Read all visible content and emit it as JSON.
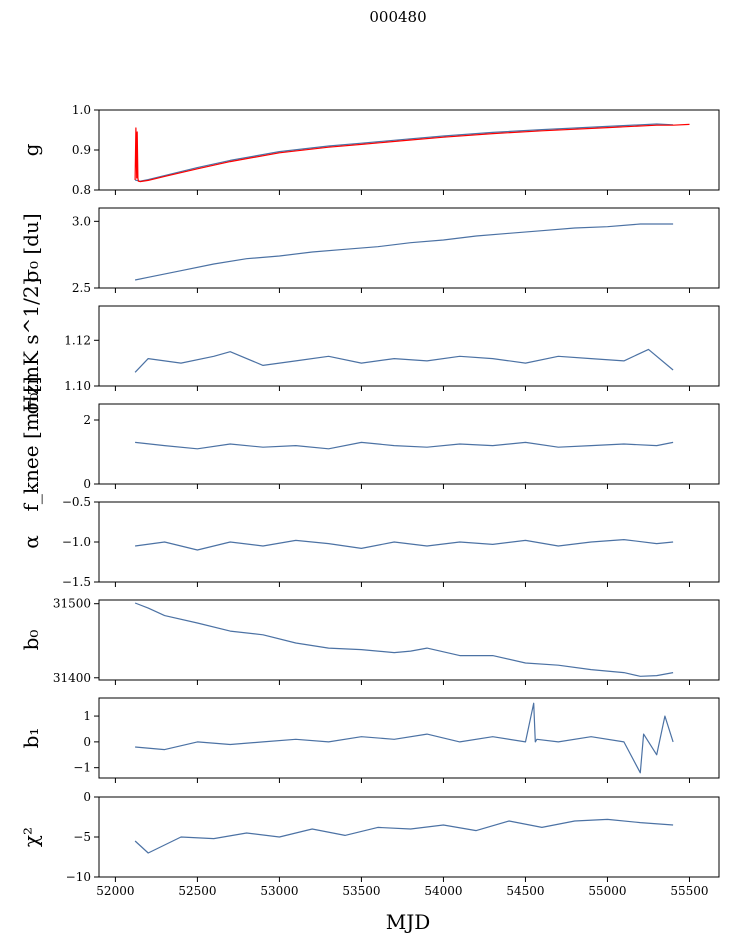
{
  "chart_data": {
    "title": "000480",
    "xlabel": "MJD",
    "xlim": [
      51900,
      55680
    ],
    "xticks": [
      52000,
      52500,
      53000,
      53500,
      54000,
      54500,
      55000,
      55500
    ],
    "xtick_labels": [
      "52000",
      "52500",
      "53000",
      "53500",
      "54000",
      "54500",
      "55000",
      "55500"
    ],
    "colors": {
      "data": "#4c72a4",
      "model": "#ff0000"
    },
    "panels": [
      {
        "key": "g",
        "type": "line",
        "ylabel": "g",
        "ylim": [
          0.8,
          1.0
        ],
        "yticks": [
          0.8,
          0.9,
          1.0
        ],
        "ytick_labels": [
          "0.8",
          "0.9",
          "1.0"
        ],
        "series": [
          {
            "name": "data",
            "color": "#4c72a4",
            "x": [
              52120,
              52150,
              52200,
              52300,
              52500,
              52700,
              53000,
              53300,
              53500,
              53800,
              54000,
              54300,
              54600,
              55000,
              55300,
              55400
            ],
            "y": [
              0.825,
              0.822,
              0.826,
              0.836,
              0.856,
              0.874,
              0.896,
              0.91,
              0.917,
              0.928,
              0.935,
              0.944,
              0.951,
              0.959,
              0.965,
              0.963
            ]
          },
          {
            "name": "model",
            "color": "#ff0000",
            "x": [
              52120,
              52125,
              52130,
              52133,
              52137,
              52140,
              52150,
              52200,
              52300,
              52500,
              52700,
              53000,
              53300,
              53500,
              53800,
              54000,
              54300,
              54600,
              55000,
              55300,
              55400,
              55500
            ],
            "y": [
              0.825,
              0.955,
              0.83,
              0.945,
              0.83,
              0.822,
              0.821,
              0.824,
              0.834,
              0.853,
              0.871,
              0.893,
              0.907,
              0.914,
              0.925,
              0.932,
              0.941,
              0.948,
              0.956,
              0.962,
              0.962,
              0.964
            ]
          }
        ]
      },
      {
        "key": "sigma0_du",
        "type": "line",
        "ylabel": "σ₀ [du]",
        "ylim": [
          2.5,
          3.1
        ],
        "yticks": [
          2.5,
          3.0
        ],
        "ytick_labels": [
          "2.5",
          "3.0"
        ],
        "series": [
          {
            "name": "data",
            "color": "#4c72a4",
            "x": [
              52120,
              52200,
              52400,
              52600,
              52800,
              53000,
              53200,
              53400,
              53600,
              53800,
              54000,
              54200,
              54400,
              54600,
              54800,
              55000,
              55200,
              55400
            ],
            "y": [
              2.56,
              2.58,
              2.63,
              2.68,
              2.72,
              2.74,
              2.77,
              2.79,
              2.81,
              2.84,
              2.86,
              2.89,
              2.91,
              2.93,
              2.95,
              2.96,
              2.98,
              2.98
            ]
          }
        ]
      },
      {
        "key": "sigma0_mK",
        "type": "line",
        "ylabel": "σ₀[mK s^1/2]",
        "ylim": [
          1.1,
          1.135
        ],
        "yticks": [
          1.1,
          1.12
        ],
        "ytick_labels": [
          "1.10",
          "1.12"
        ],
        "series": [
          {
            "name": "data",
            "color": "#4c72a4",
            "x": [
              52120,
              52200,
              52400,
              52600,
              52700,
              52900,
              53100,
              53300,
              53500,
              53700,
              53900,
              54100,
              54300,
              54500,
              54700,
              54900,
              55100,
              55250,
              55400
            ],
            "y": [
              1.106,
              1.112,
              1.11,
              1.113,
              1.115,
              1.109,
              1.111,
              1.113,
              1.11,
              1.112,
              1.111,
              1.113,
              1.112,
              1.11,
              1.113,
              1.112,
              1.111,
              1.116,
              1.107
            ]
          }
        ]
      },
      {
        "key": "fknee",
        "type": "line",
        "ylabel": "f_knee [mHz]",
        "ylim": [
          0,
          2.5
        ],
        "yticks": [
          0,
          2
        ],
        "ytick_labels": [
          "0",
          "2"
        ],
        "series": [
          {
            "name": "data",
            "color": "#4c72a4",
            "x": [
              52120,
              52300,
              52500,
              52700,
              52900,
              53100,
              53300,
              53500,
              53700,
              53900,
              54100,
              54300,
              54500,
              54700,
              54900,
              55100,
              55300,
              55400
            ],
            "y": [
              1.3,
              1.2,
              1.1,
              1.25,
              1.15,
              1.2,
              1.1,
              1.3,
              1.2,
              1.15,
              1.25,
              1.2,
              1.3,
              1.15,
              1.2,
              1.25,
              1.2,
              1.3
            ]
          }
        ]
      },
      {
        "key": "alpha",
        "type": "line",
        "ylabel": "α",
        "ylim": [
          -1.5,
          -0.5
        ],
        "yticks": [
          -1.5,
          -1.0,
          -0.5
        ],
        "ytick_labels": [
          "−1.5",
          "−1.0",
          "−0.5"
        ],
        "series": [
          {
            "name": "data",
            "color": "#4c72a4",
            "x": [
              52120,
              52300,
              52500,
              52700,
              52900,
              53100,
              53300,
              53500,
              53700,
              53900,
              54100,
              54300,
              54500,
              54700,
              54900,
              55100,
              55300,
              55400
            ],
            "y": [
              -1.05,
              -1.0,
              -1.1,
              -1.0,
              -1.05,
              -0.98,
              -1.02,
              -1.08,
              -1.0,
              -1.05,
              -1.0,
              -1.03,
              -0.98,
              -1.05,
              -1.0,
              -0.97,
              -1.02,
              -1.0
            ]
          }
        ]
      },
      {
        "key": "b0",
        "type": "line",
        "ylabel": "b₀",
        "ylim": [
          31397,
          31505
        ],
        "yticks": [
          31400,
          31500
        ],
        "ytick_labels": [
          "31400",
          "31500"
        ],
        "series": [
          {
            "name": "data",
            "color": "#4c72a4",
            "x": [
              52120,
              52200,
              52300,
              52500,
              52700,
              52900,
              53100,
              53300,
              53500,
              53700,
              53800,
              53900,
              54100,
              54300,
              54500,
              54700,
              54900,
              55100,
              55200,
              55300,
              55400
            ],
            "y": [
              31501,
              31494,
              31484,
              31474,
              31463,
              31458,
              31447,
              31440,
              31438,
              31434,
              31436,
              31440,
              31430,
              31430,
              31420,
              31417,
              31411,
              31407,
              31402,
              31403,
              31407
            ]
          }
        ]
      },
      {
        "key": "b1",
        "type": "line",
        "ylabel": "b₁",
        "ylim": [
          -1.4,
          1.7
        ],
        "yticks": [
          -1,
          0,
          1
        ],
        "ytick_labels": [
          "−1",
          "0",
          "1"
        ],
        "series": [
          {
            "name": "data",
            "color": "#4c72a4",
            "x": [
              52120,
              52300,
              52500,
              52700,
              52900,
              53100,
              53300,
              53500,
              53700,
              53900,
              54100,
              54300,
              54500,
              54550,
              54560,
              54570,
              54700,
              54900,
              55100,
              55200,
              55220,
              55300,
              55350,
              55400
            ],
            "y": [
              -0.2,
              -0.3,
              0.0,
              -0.1,
              0.0,
              0.1,
              0.0,
              0.2,
              0.1,
              0.3,
              0.0,
              0.2,
              0.0,
              1.5,
              0.0,
              0.1,
              0.0,
              0.2,
              0.0,
              -1.2,
              0.3,
              -0.5,
              1.0,
              0.0
            ]
          }
        ]
      },
      {
        "key": "chi2",
        "type": "line",
        "ylabel": "χ²",
        "ylim": [
          -10,
          0
        ],
        "yticks": [
          -10,
          -5,
          0
        ],
        "ytick_labels": [
          "−10",
          "−5",
          "0"
        ],
        "series": [
          {
            "name": "data",
            "color": "#4c72a4",
            "x": [
              52120,
              52200,
              52300,
              52400,
              52600,
              52800,
              53000,
              53200,
              53400,
              53600,
              53800,
              54000,
              54200,
              54400,
              54600,
              54800,
              55000,
              55200,
              55400
            ],
            "y": [
              -5.5,
              -7.0,
              -6.0,
              -5.0,
              -5.2,
              -4.5,
              -5.0,
              -4.0,
              -4.8,
              -3.8,
              -4.0,
              -3.5,
              -4.2,
              -3.0,
              -3.8,
              -3.0,
              -2.8,
              -3.2,
              -3.5
            ]
          }
        ]
      }
    ]
  }
}
